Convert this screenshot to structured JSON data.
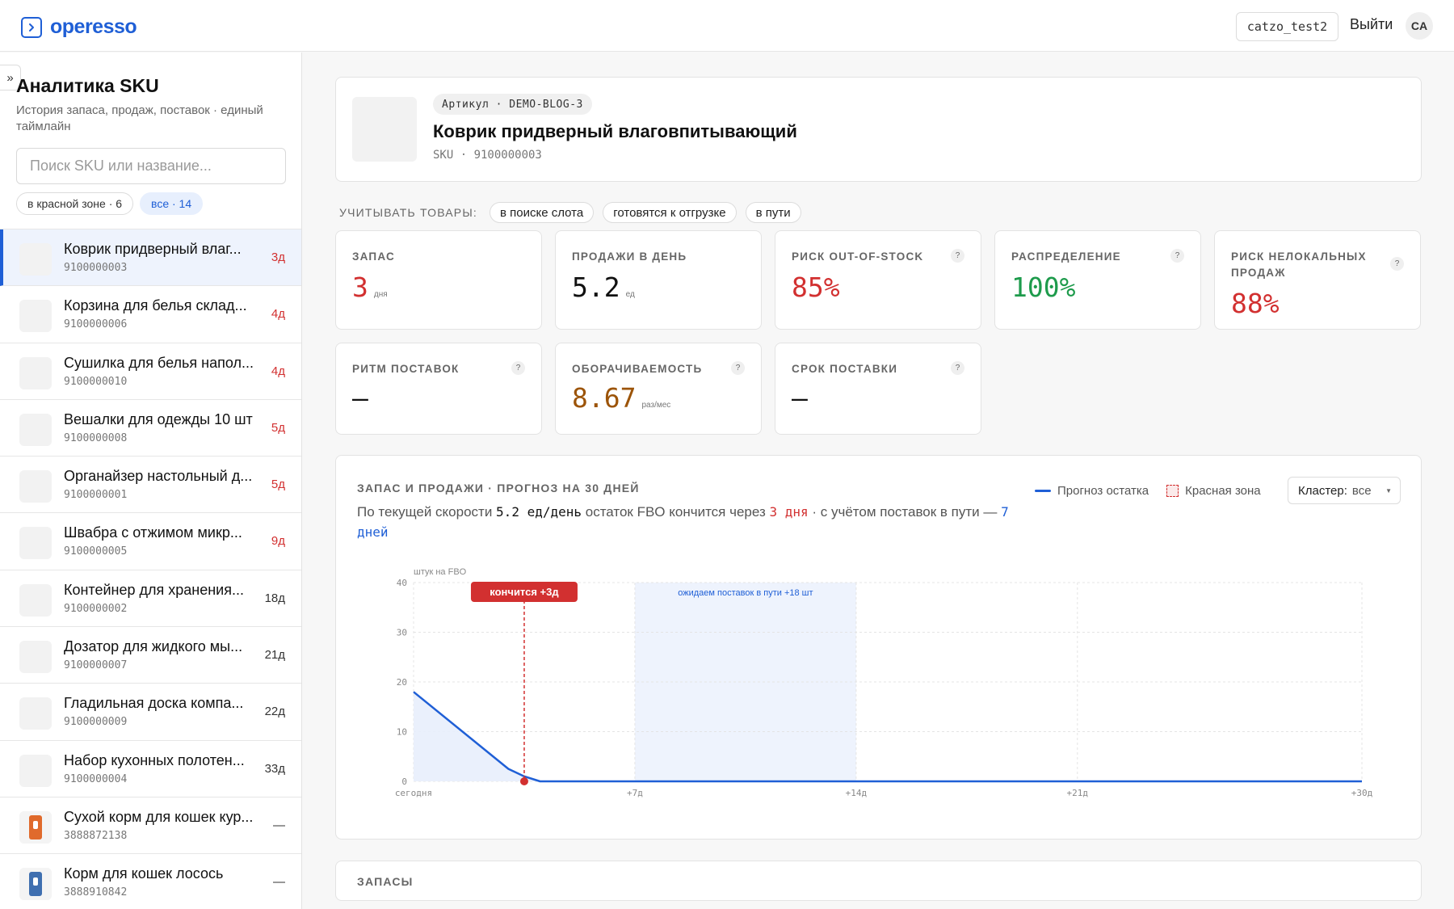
{
  "header": {
    "brand": "operesso",
    "account": "catzo_test2",
    "logout": "Выйти",
    "avatar": "CA"
  },
  "sidebar": {
    "collapse": "»",
    "title": "Аналитика SKU",
    "subtitle": "История запаса, продаж, поставок · единый таймлайн",
    "search_placeholder": "Поиск SKU или название...",
    "chips": [
      "в красной зоне · 6",
      "все · 14"
    ],
    "items": [
      {
        "name": "Коврик придверный влаг...",
        "code": "9100000003",
        "days": "3д",
        "red": true
      },
      {
        "name": "Корзина для белья склад...",
        "code": "9100000006",
        "days": "4д",
        "red": true
      },
      {
        "name": "Сушилка для белья напол...",
        "code": "9100000010",
        "days": "4д",
        "red": true
      },
      {
        "name": "Вешалки для одежды 10 шт",
        "code": "9100000008",
        "days": "5д",
        "red": true
      },
      {
        "name": "Органайзер настольный д...",
        "code": "9100000001",
        "days": "5д",
        "red": true
      },
      {
        "name": "Швабра с отжимом микр...",
        "code": "9100000005",
        "days": "9д",
        "red": true
      },
      {
        "name": "Контейнер для хранения...",
        "code": "9100000002",
        "days": "18д",
        "red": false
      },
      {
        "name": "Дозатор для жидкого мы...",
        "code": "9100000007",
        "days": "21д",
        "red": false
      },
      {
        "name": "Гладильная доска компа...",
        "code": "9100000009",
        "days": "22д",
        "red": false
      },
      {
        "name": "Набор кухонных полотен...",
        "code": "9100000004",
        "days": "33д",
        "red": false
      },
      {
        "name": "Сухой корм для кошек кур...",
        "code": "3888872138",
        "days": "—",
        "red": false
      },
      {
        "name": "Корм для кошек лосось",
        "code": "3888910842",
        "days": "—",
        "red": false
      }
    ]
  },
  "product": {
    "article": "Артикул · DEMO-BLOG-3",
    "title": "Коврик придверный влаговпитывающий",
    "sku": "SKU · 9100000003"
  },
  "filters": {
    "label": "УЧИТЫВАТЬ ТОВАРЫ:",
    "chips": [
      "в поиске слота",
      "готовятся к отгрузке",
      "в пути"
    ]
  },
  "metrics": {
    "stock": {
      "label": "ЗАПАС",
      "value": "3",
      "unit": "дня"
    },
    "sales": {
      "label": "ПРОДАЖИ В ДЕНЬ",
      "value": "5.2",
      "unit": "ед"
    },
    "oos": {
      "label": "РИСК OUT-OF-STOCK",
      "value": "85%"
    },
    "distribution": {
      "label": "РАСПРЕДЕЛЕНИЕ",
      "value": "100%"
    },
    "nonlocal": {
      "label": "РИСК НЕЛОКАЛЬНЫХ ПРОДАЖ",
      "value": "88%"
    },
    "rhythm": {
      "label": "РИТМ ПОСТАВОК",
      "value": "—"
    },
    "turnover": {
      "label": "ОБОРАЧИВАЕМОСТЬ",
      "value": "8.67",
      "unit": "раз/мес"
    },
    "leadtime": {
      "label": "СРОК ПОСТАВКИ",
      "value": "—"
    },
    "help": "?"
  },
  "chart": {
    "title": "ЗАПАС И ПРОДАЖИ · ПРОГНОЗ НА 30 ДНЕЙ",
    "desc_1": "По текущей скорости ",
    "desc_speed": "5.2 ед/день",
    "desc_2": " остаток FBO кончится через ",
    "desc_days": "3 дня",
    "desc_3": " · с учётом поставок в пути — ",
    "desc_days2": "7 дней",
    "legend_forecast": "Прогноз остатка",
    "legend_red": "Красная зона",
    "cluster_label": "Кластер:",
    "cluster_value": "все"
  },
  "chart_data": {
    "type": "line",
    "ylabel": "штук на FBO",
    "ylim": [
      0,
      40
    ],
    "yticks": [
      0,
      10,
      20,
      30,
      40
    ],
    "xlim": [
      0,
      30
    ],
    "xticks": [
      {
        "x": 0,
        "label": "сегодня"
      },
      {
        "x": 7,
        "label": "+7д"
      },
      {
        "x": 14,
        "label": "+14д"
      },
      {
        "x": 21,
        "label": "+21д"
      },
      {
        "x": 30,
        "label": "+30д"
      }
    ],
    "series": [
      {
        "x": [
          0,
          3,
          3.5,
          4,
          30
        ],
        "y": [
          18,
          2.5,
          1,
          0,
          0
        ],
        "color": "#1f5fd6"
      }
    ],
    "red_zone": {
      "x": [
        0,
        3.5
      ]
    },
    "stockout": {
      "x": 3.5,
      "label": "кончится +3д"
    },
    "incoming": {
      "x": [
        7,
        14
      ],
      "label": "ожидаем поставок в пути +18 шт"
    }
  },
  "stocks": {
    "title": "ЗАПАСЫ"
  }
}
